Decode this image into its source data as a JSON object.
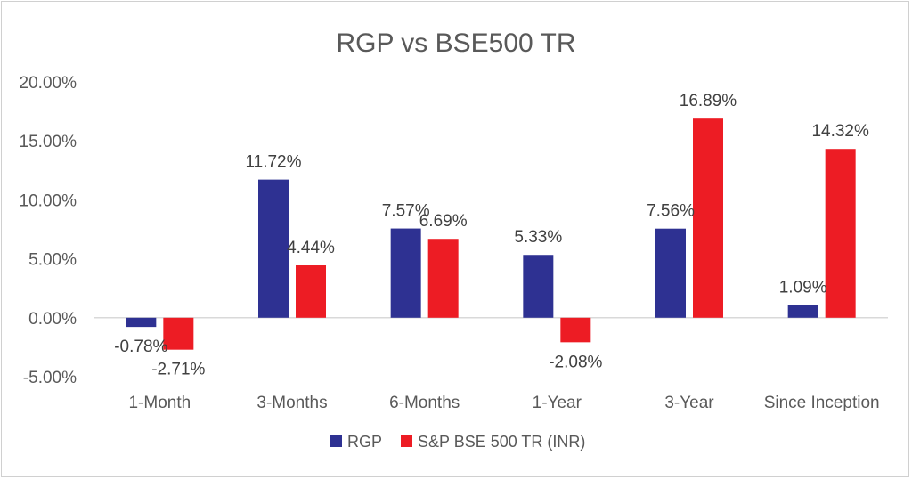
{
  "chart_data": {
    "type": "bar",
    "title": "RGP vs BSE500 TR",
    "categories": [
      "1-Month",
      "3-Months",
      "6-Months",
      "1-Year",
      "3-Year",
      "Since Inception"
    ],
    "series": [
      {
        "name": "RGP",
        "color": "#2E3192",
        "values": [
          -0.78,
          11.72,
          7.57,
          5.33,
          7.56,
          1.09
        ],
        "labels": [
          "-0.78%",
          "11.72%",
          "7.57%",
          "5.33%",
          "7.56%",
          "1.09%"
        ]
      },
      {
        "name": "S&P BSE 500 TR (INR)",
        "color": "#ED1C24",
        "values": [
          -2.71,
          4.44,
          6.69,
          -2.08,
          16.89,
          14.32
        ],
        "labels": [
          "-2.71%",
          "4.44%",
          "6.69%",
          "-2.08%",
          "16.89%",
          "14.32%"
        ]
      }
    ],
    "yticks": [
      "-5.00%",
      "0.00%",
      "5.00%",
      "10.00%",
      "15.00%",
      "20.00%"
    ],
    "ylim": [
      -5,
      20
    ],
    "grid": false,
    "legend": "bottom"
  }
}
